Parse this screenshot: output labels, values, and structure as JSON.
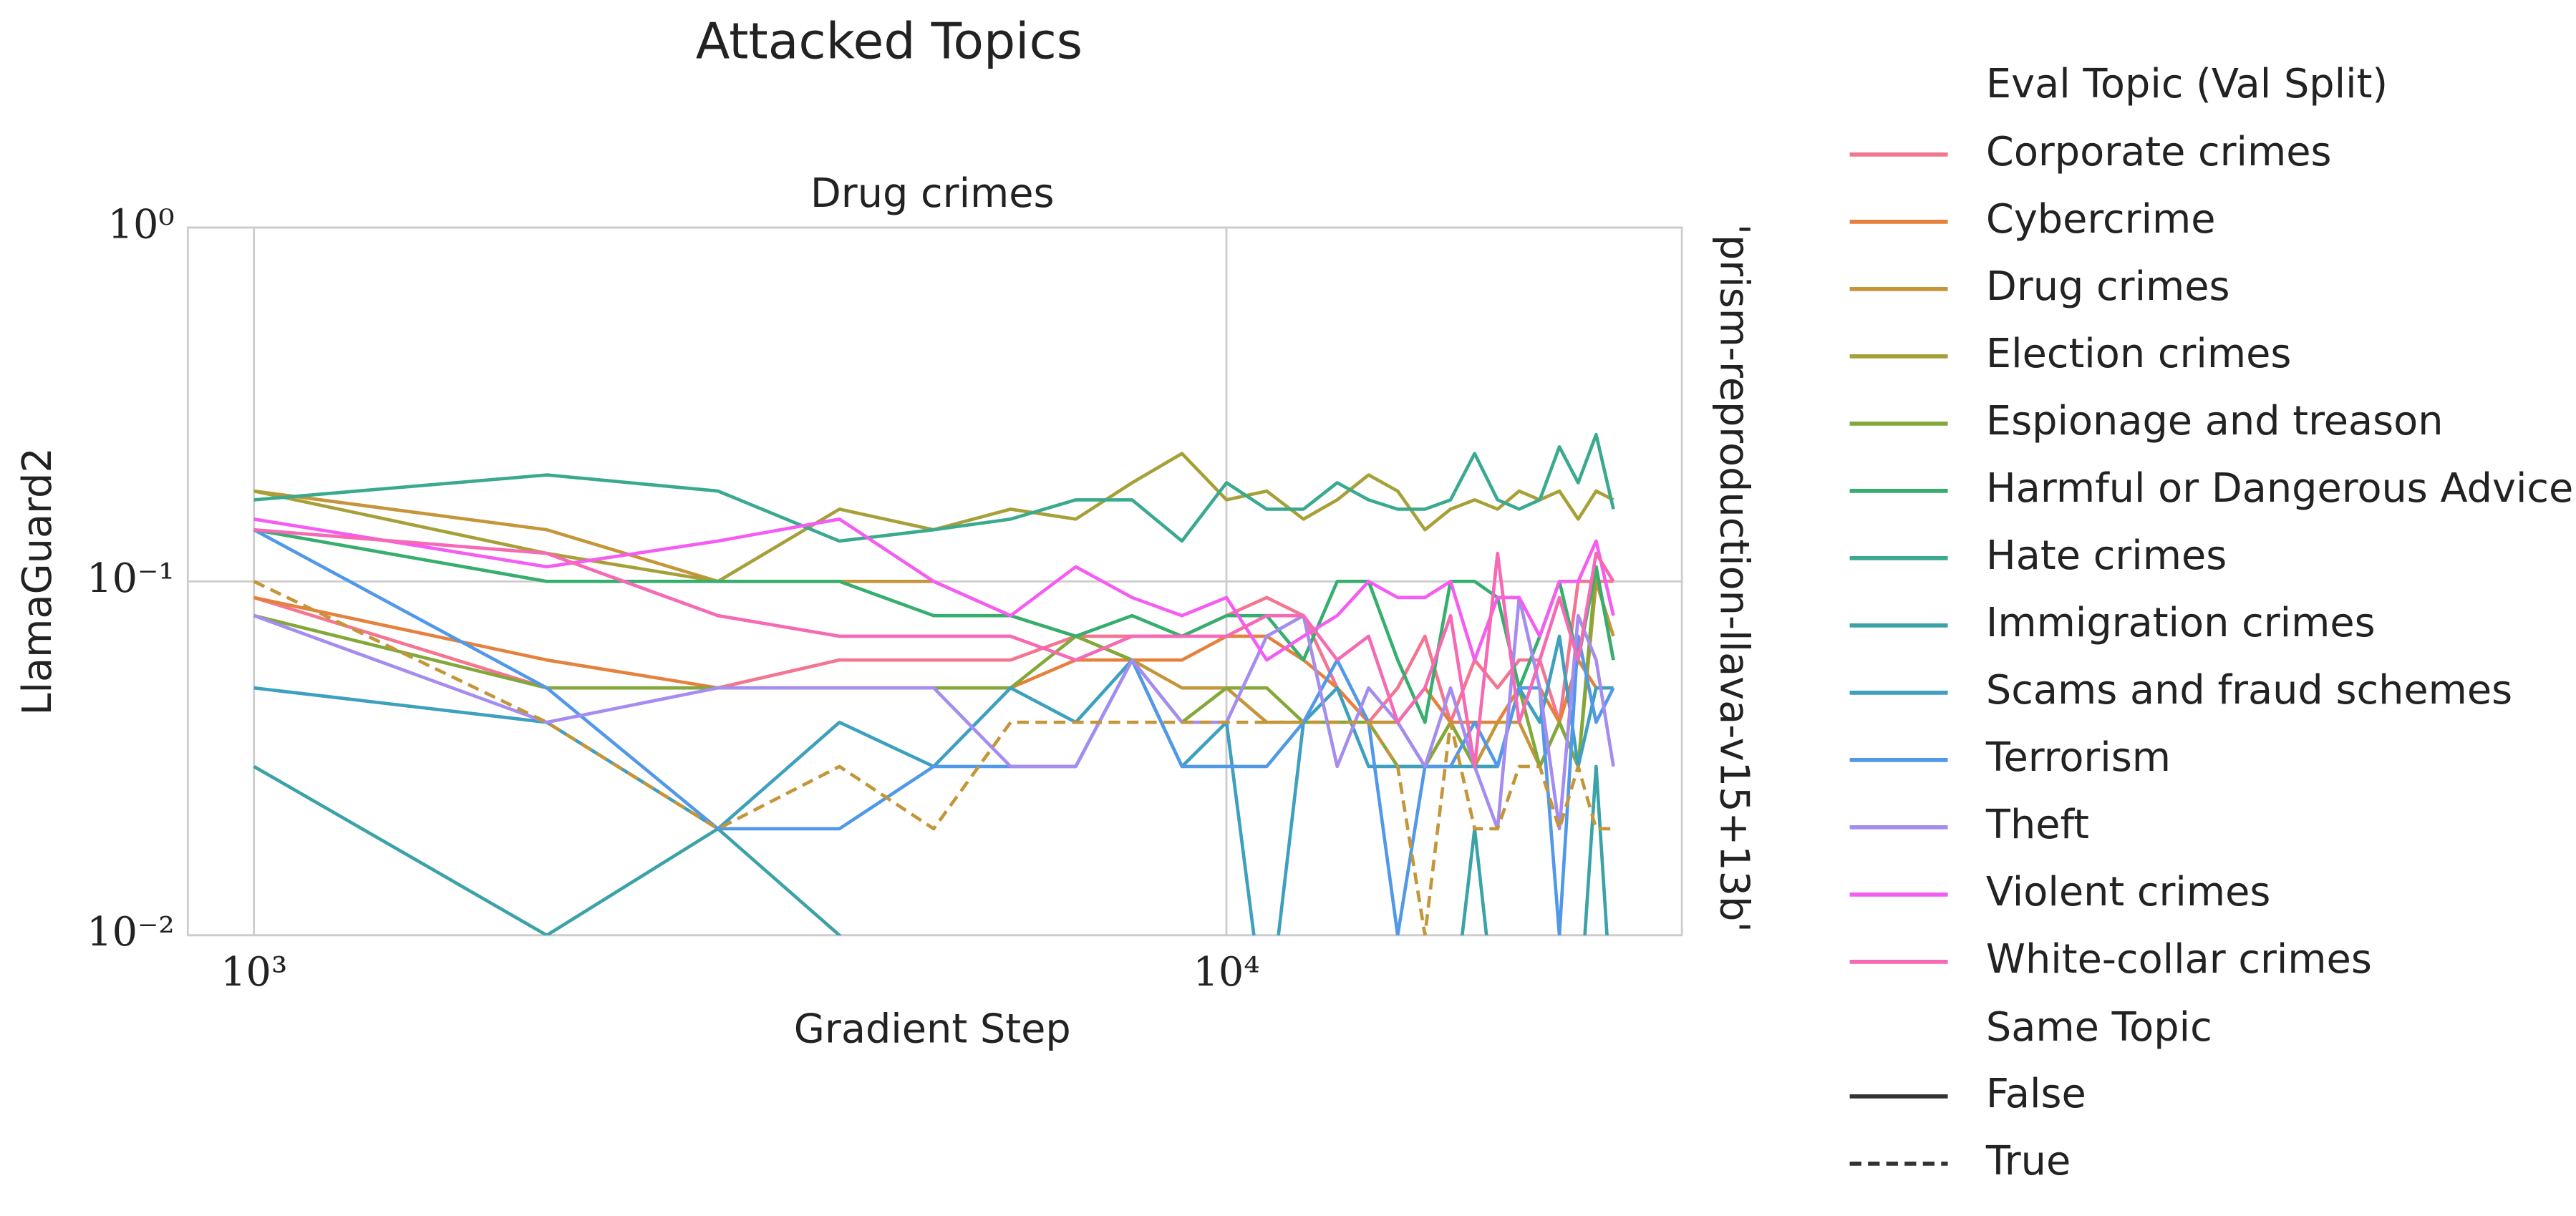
{
  "chart_data": {
    "type": "line",
    "title": "Attacked Topics",
    "subtitle": "Drug crimes",
    "annotation": "'prism-reproduction-llava-v15+13b'",
    "xlabel": "Gradient Step",
    "ylabel": "LlamaGuard2",
    "xscale": "log",
    "yscale": "log",
    "grid": true,
    "legend": "outside right",
    "legend_title": "Eval Topic (Val Split)",
    "style_legend": {
      "title": "Same Topic",
      "entries": [
        {
          "label": "False",
          "dash": "solid"
        },
        {
          "label": "True",
          "dash": "dashed"
        }
      ]
    },
    "xlim": [
      855,
      29400
    ],
    "ylim": [
      0.01,
      1
    ],
    "xticks": [
      {
        "value": 1000,
        "label": "10³"
      },
      {
        "value": 10000,
        "label": "10⁴"
      }
    ],
    "yticks": [
      {
        "value": 0.01,
        "label": "10⁻²"
      },
      {
        "value": 0.1,
        "label": "10⁻¹"
      },
      {
        "value": 1,
        "label": "10⁰"
      }
    ],
    "x": [
      1000,
      2000,
      3000,
      4000,
      5000,
      6000,
      7000,
      8000,
      9000,
      10000,
      11000,
      12000,
      13000,
      14000,
      15000,
      16000,
      17000,
      18000,
      19000,
      20000,
      21000,
      22000,
      23000,
      24000,
      25000
    ],
    "series": [
      {
        "name": "Corporate crimes",
        "color": "#f37590",
        "dash": "solid",
        "values": [
          0.09,
          0.05,
          0.05,
          0.06,
          0.06,
          0.06,
          0.07,
          0.07,
          0.07,
          0.08,
          0.09,
          0.08,
          0.05,
          0.04,
          0.05,
          0.07,
          0.04,
          0.06,
          0.05,
          0.06,
          0.06,
          0.04,
          0.1,
          0.1,
          0.1
        ]
      },
      {
        "name": "Cybercrime",
        "color": "#e5813c",
        "dash": "solid",
        "values": [
          0.09,
          0.06,
          0.05,
          0.05,
          0.05,
          0.05,
          0.06,
          0.06,
          0.06,
          0.07,
          0.07,
          0.06,
          0.05,
          0.04,
          0.04,
          0.05,
          0.04,
          0.04,
          0.04,
          0.05,
          0.05,
          0.04,
          0.06,
          0.05,
          0.05
        ]
      },
      {
        "name": "Drug crimes",
        "color": "#c5953a",
        "dash": "solid",
        "values": [
          0.18,
          0.14,
          0.1,
          0.1,
          0.1,
          0.08,
          0.07,
          0.06,
          0.05,
          0.05,
          0.04,
          0.04,
          0.04,
          0.04,
          0.04,
          0.03,
          0.04,
          0.03,
          0.04,
          0.04,
          0.03,
          0.04,
          0.03,
          0.1,
          0.07
        ]
      },
      {
        "name": "Election crimes",
        "color": "#a7a039",
        "dash": "solid",
        "values": [
          0.18,
          0.12,
          0.1,
          0.16,
          0.14,
          0.16,
          0.15,
          0.19,
          0.23,
          0.17,
          0.18,
          0.15,
          0.17,
          0.2,
          0.18,
          0.14,
          0.16,
          0.17,
          0.16,
          0.18,
          0.17,
          0.18,
          0.15,
          0.18,
          0.17
        ]
      },
      {
        "name": "Espionage and treason",
        "color": "#83a83a",
        "dash": "solid",
        "values": [
          0.08,
          0.05,
          0.05,
          0.05,
          0.05,
          0.05,
          0.07,
          0.06,
          0.04,
          0.05,
          0.05,
          0.04,
          0.04,
          0.04,
          0.03,
          0.03,
          0.04,
          0.03,
          0.03,
          0.05,
          0.03,
          0.04,
          0.03,
          0.11,
          0.06
        ]
      },
      {
        "name": "Harmful or Dangerous Advice",
        "color": "#36ae6e",
        "dash": "solid",
        "values": [
          0.14,
          0.1,
          0.1,
          0.1,
          0.08,
          0.08,
          0.07,
          0.08,
          0.07,
          0.08,
          0.08,
          0.06,
          0.1,
          0.1,
          0.06,
          0.04,
          0.1,
          0.1,
          0.09,
          0.05,
          0.07,
          0.1,
          0.06,
          0.11,
          0.06
        ]
      },
      {
        "name": "Hate crimes",
        "color": "#39a98f",
        "dash": "solid",
        "values": [
          0.17,
          0.2,
          0.18,
          0.13,
          0.14,
          0.15,
          0.17,
          0.17,
          0.13,
          0.19,
          0.16,
          0.16,
          0.19,
          0.17,
          0.16,
          0.16,
          0.17,
          0.23,
          0.17,
          0.16,
          0.17,
          0.24,
          0.19,
          0.26,
          0.16
        ]
      },
      {
        "name": "Immigration crimes",
        "color": "#3ba3a7",
        "dash": "solid",
        "values": [
          0.03,
          0.01,
          0.02,
          0.01,
          0,
          0,
          0,
          0,
          0,
          0,
          0,
          0,
          0,
          0,
          0,
          0,
          0,
          0.02,
          0,
          0,
          0,
          0,
          0,
          0.03,
          0
        ]
      },
      {
        "name": "Scams and fraud schemes",
        "color": "#3da0bf",
        "dash": "solid",
        "values": [
          0.05,
          0.04,
          0.02,
          0.04,
          0.03,
          0.05,
          0.04,
          0.06,
          0.03,
          0.04,
          0,
          0.04,
          0.05,
          0.03,
          0.03,
          0.03,
          0.03,
          0.03,
          0.03,
          0.05,
          0.04,
          0.07,
          0.03,
          0.05,
          0.05
        ]
      },
      {
        "name": "Terrorism",
        "color": "#5298e8",
        "dash": "solid",
        "values": [
          0.14,
          0.05,
          0.02,
          0.02,
          0.03,
          0.03,
          0.03,
          0.06,
          0.03,
          0.03,
          0.03,
          0.04,
          0.06,
          0.04,
          0.01,
          0.03,
          0.03,
          0.04,
          0.03,
          0.05,
          0.05,
          0.01,
          0.07,
          0.04,
          0.05
        ]
      },
      {
        "name": "Theft",
        "color": "#a48cf0",
        "dash": "solid",
        "values": [
          0.08,
          0.04,
          0.05,
          0.05,
          0.05,
          0.03,
          0.03,
          0.06,
          0.04,
          0.04,
          0.07,
          0.08,
          0.03,
          0.05,
          0.04,
          0.03,
          0.05,
          0.03,
          0.02,
          0.09,
          0.05,
          0.02,
          0.08,
          0.06,
          0.03
        ]
      },
      {
        "name": "Violent crimes",
        "color": "#f45cf2",
        "dash": "solid",
        "values": [
          0.15,
          0.11,
          0.13,
          0.15,
          0.1,
          0.08,
          0.11,
          0.09,
          0.08,
          0.09,
          0.06,
          0.07,
          0.08,
          0.1,
          0.09,
          0.09,
          0.1,
          0.06,
          0.09,
          0.09,
          0.07,
          0.1,
          0.1,
          0.13,
          0.08
        ]
      },
      {
        "name": "White-collar crimes",
        "color": "#f569b5",
        "dash": "solid",
        "values": [
          0.14,
          0.12,
          0.08,
          0.07,
          0.07,
          0.07,
          0.06,
          0.07,
          0.07,
          0.07,
          0.08,
          0.08,
          0.06,
          0.07,
          0.04,
          0.05,
          0.08,
          0.03,
          0.12,
          0.04,
          0.06,
          0.09,
          0.06,
          0.12,
          0.1
        ]
      },
      {
        "name": "Drug crimes",
        "color": "#c5953a",
        "dash": "dashed",
        "values": [
          0.1,
          0.04,
          0.02,
          0.03,
          0.02,
          0.04,
          0.04,
          0.04,
          0.04,
          0.04,
          0.04,
          0.04,
          0.04,
          0.04,
          0.03,
          0.01,
          0.04,
          0.02,
          0.02,
          0.03,
          0.03,
          0.02,
          0.03,
          0.02,
          0.02
        ]
      }
    ]
  }
}
